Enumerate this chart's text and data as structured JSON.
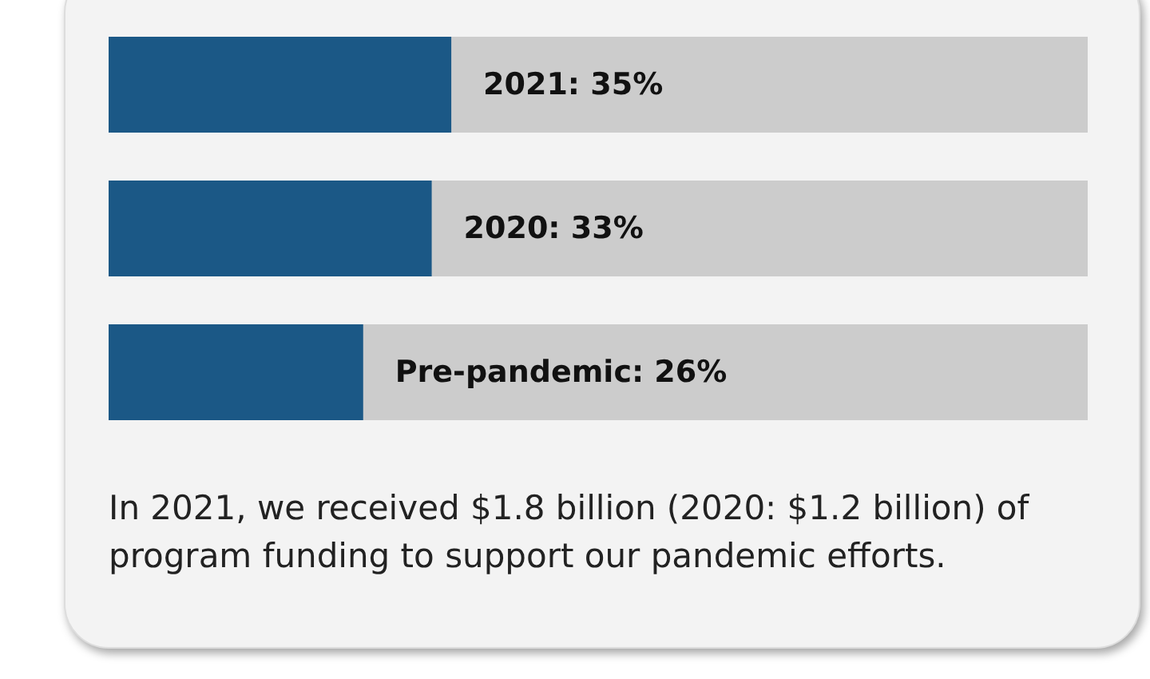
{
  "chart_data": {
    "type": "bar",
    "orientation": "horizontal",
    "categories": [
      null,
      null,
      null
    ],
    "values": [
      35,
      33,
      26
    ],
    "value_labels": [
      "2021: 35%",
      "2020: 33%",
      "Pre-pandemic: 26%"
    ],
    "color": "#1b5886",
    "xlim": [
      0,
      100
    ],
    "tick_labels": false,
    "grid": false,
    "annotations": [
      "In 2021, we received $1.8 billion (2020: $1.2 billion) of program funding to support our pandemic efforts."
    ]
  }
}
